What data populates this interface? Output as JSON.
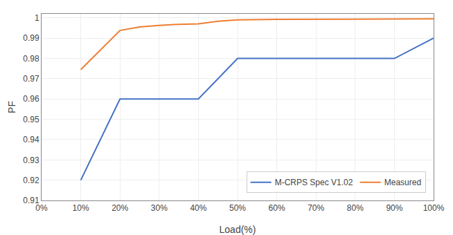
{
  "chart_data": {
    "type": "line",
    "x_label": "Load(%)",
    "y_label": "PF",
    "xlim": [
      0,
      100
    ],
    "ylim": [
      0.91,
      1.002
    ],
    "xticks": [
      {
        "value": 0,
        "label": "0%"
      },
      {
        "value": 10,
        "label": "10%"
      },
      {
        "value": 20,
        "label": "20%"
      },
      {
        "value": 30,
        "label": "30%"
      },
      {
        "value": 40,
        "label": "40%"
      },
      {
        "value": 50,
        "label": "50%"
      },
      {
        "value": 60,
        "label": "60%"
      },
      {
        "value": 70,
        "label": "70%"
      },
      {
        "value": 80,
        "label": "80%"
      },
      {
        "value": 90,
        "label": "90%"
      },
      {
        "value": 100,
        "label": "100%"
      }
    ],
    "yticks": [
      0.91,
      0.92,
      0.93,
      0.94,
      0.95,
      0.96,
      0.97,
      0.98,
      0.99,
      1
    ],
    "series": [
      {
        "name": "M-CRPS Spec V1.02",
        "color": "#4472C4",
        "line_style": "solid",
        "x": [
          10,
          20,
          40,
          50,
          90,
          100
        ],
        "values": [
          0.92,
          0.96,
          0.96,
          0.98,
          0.98,
          0.99
        ]
      },
      {
        "name": "Measured",
        "color": "#ED7D31",
        "line_style": "solid",
        "x": [
          10,
          15,
          20,
          25,
          30,
          35,
          40,
          45,
          50,
          60,
          70,
          80,
          90,
          100
        ],
        "values": [
          0.9745,
          0.984,
          0.9938,
          0.9955,
          0.9963,
          0.9968,
          0.9971,
          0.9983,
          0.999,
          0.9993,
          0.9993,
          0.9993,
          0.9993,
          0.9995
        ]
      }
    ],
    "grid": true,
    "legend": "lower right"
  }
}
